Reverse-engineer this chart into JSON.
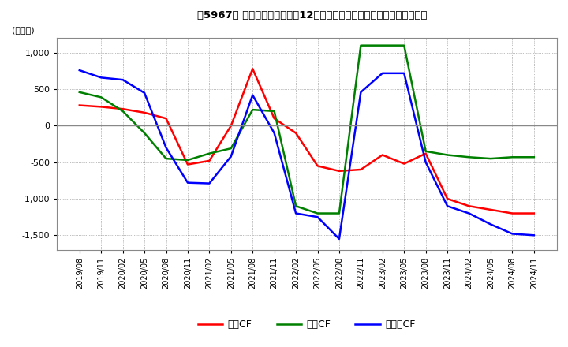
{
  "title": "【5967】 キャッシュフローの12か月移動合計の対前年同期増減額の推移",
  "ylabel": "(百万円)",
  "ylim": [
    -1700,
    1200
  ],
  "yticks": [
    -1500,
    -1000,
    -500,
    0,
    500,
    1000
  ],
  "legend_labels": [
    "営業CF",
    "投資CF",
    "フリーCF"
  ],
  "colors": [
    "#ff0000",
    "#008000",
    "#0000ff"
  ],
  "dates": [
    "2019/08",
    "2019/11",
    "2020/02",
    "2020/05",
    "2020/08",
    "2020/11",
    "2021/02",
    "2021/05",
    "2021/08",
    "2021/11",
    "2022/02",
    "2022/05",
    "2022/08",
    "2022/11",
    "2023/02",
    "2023/05",
    "2023/08",
    "2023/11",
    "2024/02",
    "2024/05",
    "2024/08",
    "2024/11"
  ],
  "operating_cf": [
    280,
    260,
    230,
    180,
    100,
    -530,
    -480,
    0,
    780,
    100,
    -100,
    -550,
    -620,
    -600,
    -400,
    -520,
    -380,
    -1000,
    -1100,
    -1150,
    -1200,
    -1200
  ],
  "investing_cf": [
    460,
    390,
    200,
    -100,
    -450,
    -470,
    -380,
    -310,
    220,
    200,
    -1100,
    -1200,
    -1200,
    1100,
    1100,
    1100,
    -350,
    -400,
    -430,
    -450,
    -430,
    -430
  ],
  "free_cf": [
    760,
    660,
    630,
    450,
    -300,
    -780,
    -790,
    -420,
    420,
    -100,
    -1200,
    -1250,
    -1550,
    460,
    720,
    720,
    -500,
    -1100,
    -1200,
    -1350,
    -1480,
    -1500
  ]
}
